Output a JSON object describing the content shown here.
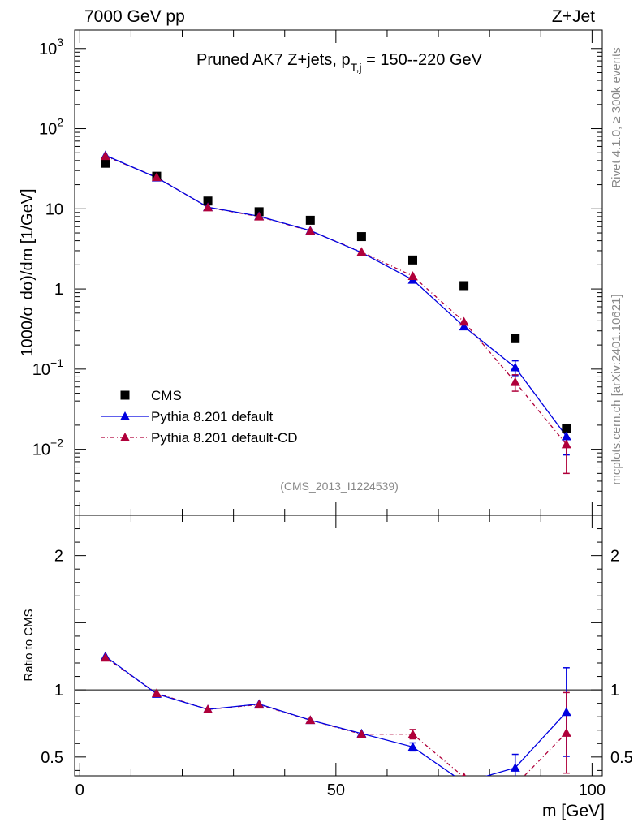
{
  "header": {
    "energy_label": "7000 GeV pp",
    "process_label": "Z+Jet"
  },
  "side_labels": {
    "rivet": "Rivet 4.1.0, ≥ 300k events",
    "mcplots": "mcplots.cern.ch [arXiv:2401.10621]"
  },
  "colors": {
    "cms": "#000000",
    "default": "#0000e0",
    "default_cd": "#b0003a"
  },
  "chart_data": [
    {
      "type": "scatter",
      "title_prefix": "Pruned AK7 Z+jets, p",
      "title_sub": "T,j",
      "title_suffix": " = 150--220 GeV",
      "analysis_id": "(CMS_2013_I1224539)",
      "ylabel_a": "1000/σ",
      "ylabel_b": "dσ)/dm [1/GeV]",
      "yscale": "log",
      "ylim": [
        0.0015,
        1700
      ],
      "xlim": [
        -1,
        102
      ],
      "ytick_labels": [
        {
          "base": "10",
          "exp": "3"
        },
        {
          "base": "10",
          "exp": "2"
        },
        {
          "base": "10",
          "exp": ""
        },
        {
          "base": "1",
          "exp": ""
        },
        {
          "base": "10",
          "exp": "−1"
        },
        {
          "base": "10",
          "exp": "−2"
        }
      ],
      "ytick_values": [
        1000,
        100,
        10,
        1,
        0.1,
        0.01
      ],
      "legend": [
        "CMS",
        "Pythia 8.201 default",
        "Pythia 8.201 default-CD"
      ],
      "legend_position": "lower-left",
      "series": [
        {
          "name": "CMS",
          "x": [
            5,
            15,
            25,
            35,
            45,
            55,
            65,
            75,
            85,
            95
          ],
          "y": [
            37,
            25.5,
            12.5,
            9.2,
            7.2,
            4.5,
            2.3,
            1.1,
            0.24,
            0.018
          ],
          "yerr": [
            0,
            0,
            0,
            0,
            0,
            0,
            0,
            0,
            0,
            0
          ]
        },
        {
          "name": "Pythia 8.201 default",
          "x": [
            5,
            15,
            25,
            35,
            45,
            55,
            65,
            75,
            85,
            95
          ],
          "y": [
            46.5,
            24.5,
            10.5,
            8.1,
            5.35,
            2.85,
            1.3,
            0.34,
            0.105,
            0.0145
          ],
          "yerr": [
            0,
            0,
            0,
            0,
            0,
            0,
            0,
            0,
            0.022,
            0.006
          ]
        },
        {
          "name": "Pythia 8.201 default-CD",
          "x": [
            5,
            15,
            25,
            35,
            45,
            55,
            65,
            75,
            85,
            95
          ],
          "y": [
            45.5,
            24.8,
            10.4,
            8.0,
            5.3,
            2.9,
            1.45,
            0.39,
            0.069,
            0.0115
          ],
          "yerr": [
            0,
            0,
            0,
            0,
            0,
            0,
            0,
            0,
            0.016,
            0.0065
          ]
        }
      ]
    },
    {
      "type": "scatter",
      "ylabel": "Ratio to CMS",
      "xlabel": "m [GeV]",
      "ylim": [
        0.36,
        2.3
      ],
      "xlim": [
        -1,
        102
      ],
      "xtick_values": [
        0,
        50,
        100
      ],
      "xtick_labels": [
        "0",
        "50",
        "100"
      ],
      "ytick_values": [
        2,
        1,
        0.5
      ],
      "ytick_labels": [
        "2",
        "1",
        "0.5"
      ],
      "reference_line": 1,
      "series": [
        {
          "name": "Pythia 8.201 default",
          "x": [
            5,
            15,
            25,
            35,
            45,
            55,
            65,
            75,
            85,
            95
          ],
          "y": [
            1.25,
            0.97,
            0.855,
            0.895,
            0.775,
            0.675,
            0.575,
            0.31,
            0.42,
            0.835
          ],
          "yerr": [
            0,
            0,
            0,
            0,
            0,
            0,
            0.03,
            0,
            0.1,
            0.33
          ]
        },
        {
          "name": "Pythia 8.201 default-CD",
          "x": [
            5,
            15,
            25,
            35,
            45,
            55,
            65,
            75,
            85,
            95
          ],
          "y": [
            1.24,
            0.975,
            0.855,
            0.89,
            0.775,
            0.67,
            0.67,
            0.35,
            0.29,
            0.68
          ],
          "yerr": [
            0,
            0,
            0,
            0,
            0,
            0,
            0.035,
            0,
            0.05,
            0.3
          ]
        }
      ]
    }
  ]
}
